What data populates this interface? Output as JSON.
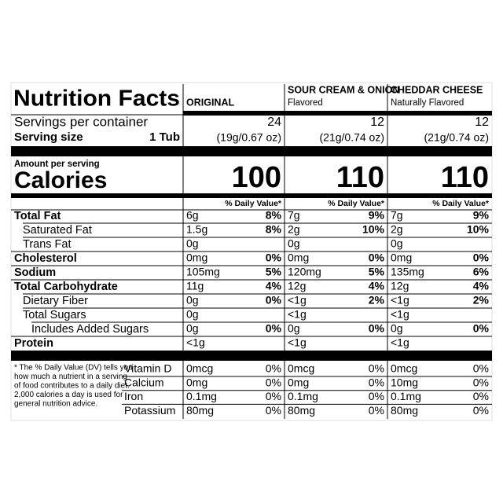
{
  "header": {
    "title": "Nutrition Facts"
  },
  "columns": [
    {
      "name": "ORIGINAL"
    },
    {
      "name": "SOUR CREAM & ONION",
      "subtitle": "Flavored"
    },
    {
      "name": "CHEDDAR CHEESE",
      "subtitle": "Naturally Flavored"
    }
  ],
  "servings": {
    "label": "Servings per container",
    "values": [
      24,
      12,
      12
    ]
  },
  "serving_size": {
    "label": "Serving size",
    "amount": "1 Tub",
    "values": [
      "(19g/0.67 oz)",
      "(21g/0.74 oz)",
      "(21g/0.74 oz)"
    ]
  },
  "calories": {
    "note": "Amount per serving",
    "label": "Calories",
    "values": [
      100,
      110,
      110
    ]
  },
  "dv_headers": [
    "% Daily Value*",
    "% Daily Value*",
    "% Daily Value*"
  ],
  "nutrients": [
    {
      "name": "Total Fat",
      "values": [
        {
          "amount": "6g",
          "dv": "8%"
        },
        {
          "amount": "7g",
          "dv": "9%"
        },
        {
          "amount": "7g",
          "dv": "9%"
        }
      ]
    },
    {
      "name": "Saturated Fat",
      "values": [
        {
          "amount": "1.5g",
          "dv": "8%"
        },
        {
          "amount": "2g",
          "dv": "10%"
        },
        {
          "amount": "2g",
          "dv": "10%"
        }
      ]
    },
    {
      "name": "Trans Fat",
      "values": [
        {
          "amount": "0g"
        },
        {
          "amount": "0g"
        },
        {
          "amount": "0g"
        }
      ]
    },
    {
      "name": "Cholesterol",
      "values": [
        {
          "amount": "0mg",
          "dv": "0%"
        },
        {
          "amount": "0mg",
          "dv": "0%"
        },
        {
          "amount": "0mg",
          "dv": "0%"
        }
      ]
    },
    {
      "name": "Sodium",
      "values": [
        {
          "amount": "105mg",
          "dv": "5%"
        },
        {
          "amount": "120mg",
          "dv": "5%"
        },
        {
          "amount": "135mg",
          "dv": "6%"
        }
      ]
    },
    {
      "name": "Total Carbohydrate",
      "values": [
        {
          "amount": "11g",
          "dv": "4%"
        },
        {
          "amount": "12g",
          "dv": "4%"
        },
        {
          "amount": "12g",
          "dv": "4%"
        }
      ]
    },
    {
      "name": "Dietary Fiber",
      "values": [
        {
          "amount": "0g",
          "dv": "0%"
        },
        {
          "amount": "<1g",
          "dv": "2%"
        },
        {
          "amount": "<1g",
          "dv": "2%"
        }
      ]
    },
    {
      "name": "Total Sugars",
      "values": [
        {
          "amount": "0g"
        },
        {
          "amount": "<1g"
        },
        {
          "amount": "<1g"
        }
      ]
    },
    {
      "name": "Includes Added Sugars",
      "values": [
        {
          "amount": "0g",
          "dv": "0%"
        },
        {
          "amount": "0g",
          "dv": "0%"
        },
        {
          "amount": "0g",
          "dv": "0%"
        }
      ]
    },
    {
      "name": "Protein",
      "values": [
        {
          "amount": "<1g"
        },
        {
          "amount": "<1g"
        },
        {
          "amount": "<1g"
        }
      ]
    }
  ],
  "footnote": [
    "* The % Daily Value (DV) tells you",
    "how much a nutrient in a serving",
    "of food contributes to a daily diet.",
    "2,000 calories a day is used for",
    "general nutrition advice."
  ],
  "vitamins": [
    {
      "name": "Vitamin D",
      "values": [
        {
          "amount": "0mcg",
          "dv": "0%"
        },
        {
          "amount": "0mcg",
          "dv": "0%"
        },
        {
          "amount": "0mcg",
          "dv": "0%"
        }
      ]
    },
    {
      "name": "Calcium",
      "values": [
        {
          "amount": "0mg",
          "dv": "0%"
        },
        {
          "amount": "0mg",
          "dv": "0%"
        },
        {
          "amount": "10mg",
          "dv": "0%"
        }
      ]
    },
    {
      "name": "Iron",
      "values": [
        {
          "amount": "0.1mg",
          "dv": "0%"
        },
        {
          "amount": "0.1mg",
          "dv": "0%"
        },
        {
          "amount": "0.1mg",
          "dv": "0%"
        }
      ]
    },
    {
      "name": "Potassium",
      "values": [
        {
          "amount": "80mg",
          "dv": "0%"
        },
        {
          "amount": "80mg",
          "dv": "0%"
        },
        {
          "amount": "80mg",
          "dv": "0%"
        }
      ]
    }
  ]
}
